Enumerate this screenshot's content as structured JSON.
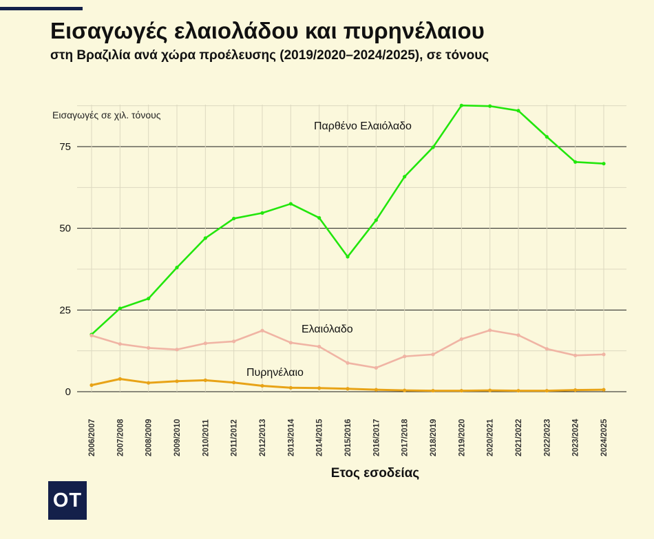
{
  "header": {
    "title": "Εισαγωγές ελαιολάδου και πυρηνέλαιου",
    "subtitle": "στη Βραζιλία ανά χώρα προέλευσης (2019/2020–2024/2025), σε τόνους"
  },
  "logo": {
    "text": "OT"
  },
  "colors": {
    "background": "#fbf8dc",
    "brand": "#14204a",
    "virgin": "#22e60c",
    "olive_oil": "#f0b4a4",
    "pomace": "#e8a317"
  },
  "chart_data": {
    "type": "line",
    "title": "Εισαγωγές ελαιολάδου και πυρηνέλαιου",
    "subtitle": "στη Βραζιλία ανά χώρα προέλευσης (2019/2020–2024/2025), σε τόνους",
    "xlabel": "Ετος εσοδείας",
    "ylabel": "Εισαγωγές σε χιλ. τόνους",
    "ylim": [
      0,
      88
    ],
    "yticks": [
      0,
      25,
      50,
      75
    ],
    "grid": true,
    "legend": "inline-labels",
    "categories": [
      "2006/2007",
      "2007/2008",
      "2008/2009",
      "2009/2010",
      "2010/2011",
      "2011/2012",
      "2012/2013",
      "2013/2014",
      "2014/2015",
      "2015/2016",
      "2016/2017",
      "2017/2018",
      "2018/2019",
      "2019/2020",
      "2020/2021",
      "2021/2022",
      "2022/2023",
      "2023/2024",
      "2024/2025"
    ],
    "series": [
      {
        "name": "Παρθένο Ελαιόλαδο",
        "key": "virgin",
        "values": [
          17.5,
          25.5,
          28.5,
          38,
          47,
          53,
          54.7,
          57.5,
          53.2,
          41.3,
          52.5,
          65.8,
          74.8,
          87.6,
          87.4,
          86,
          78,
          70.3,
          69.8
        ]
      },
      {
        "name": "Ελαιόλαδο",
        "key": "olive_oil",
        "values": [
          17.2,
          14.6,
          13.4,
          12.9,
          14.8,
          15.4,
          18.7,
          15,
          13.8,
          8.8,
          7.3,
          10.8,
          11.4,
          16.1,
          18.8,
          17.3,
          13.1,
          11.1,
          11.4
        ]
      },
      {
        "name": "Πυρηνέλαιο",
        "key": "pomace",
        "values": [
          2,
          3.9,
          2.7,
          3.2,
          3.5,
          2.8,
          1.8,
          1.2,
          1.1,
          0.9,
          0.6,
          0.4,
          0.3,
          0.3,
          0.4,
          0.3,
          0.3,
          0.5,
          0.6
        ]
      }
    ]
  }
}
